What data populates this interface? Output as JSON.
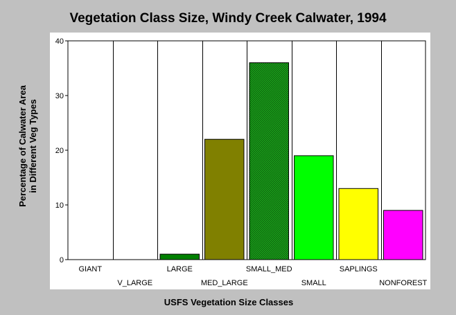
{
  "chart_data": {
    "type": "bar",
    "title": "Vegetation Class Size, Windy Creek Calwater, 1994",
    "xlabel": "USFS Vegetation Size Classes",
    "ylabel_line1": "Percentage of Calwater Area",
    "ylabel_line2": "in Different Veg Types",
    "ylim": [
      0,
      40
    ],
    "yticks": [
      0,
      10,
      20,
      30,
      40
    ],
    "grid": "vertical",
    "categories": [
      "GIANT",
      "V_LARGE",
      "LARGE",
      "MED_LARGE",
      "SMALL_MED",
      "SMALL",
      "SAPLINGS",
      "NONFOREST"
    ],
    "values": [
      0,
      0,
      1,
      22,
      36,
      19,
      13,
      9
    ],
    "colors": [
      "#008000",
      "#008000",
      "#008000",
      "#808000",
      "#008000",
      "#00ff00",
      "#ffff00",
      "#ff00ff"
    ],
    "patterns": [
      "solid",
      "solid",
      "solid",
      "solid",
      "hatched",
      "solid",
      "solid",
      "solid"
    ]
  }
}
